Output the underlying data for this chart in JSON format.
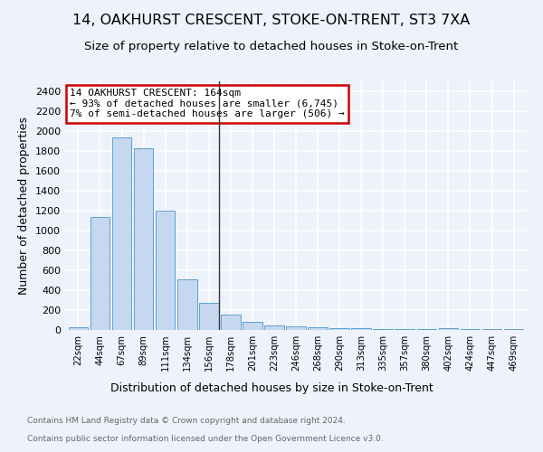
{
  "title": "14, OAKHURST CRESCENT, STOKE-ON-TRENT, ST3 7XA",
  "subtitle": "Size of property relative to detached houses in Stoke-on-Trent",
  "xlabel": "Distribution of detached houses by size in Stoke-on-Trent",
  "ylabel": "Number of detached properties",
  "bar_labels": [
    "22sqm",
    "44sqm",
    "67sqm",
    "89sqm",
    "111sqm",
    "134sqm",
    "156sqm",
    "178sqm",
    "201sqm",
    "223sqm",
    "246sqm",
    "268sqm",
    "290sqm",
    "313sqm",
    "335sqm",
    "357sqm",
    "380sqm",
    "402sqm",
    "424sqm",
    "447sqm",
    "469sqm"
  ],
  "bar_values": [
    30,
    1140,
    1940,
    1830,
    1200,
    505,
    270,
    155,
    85,
    45,
    40,
    30,
    18,
    20,
    5,
    5,
    5,
    20,
    5,
    5,
    5
  ],
  "bar_color": "#c5d8f0",
  "bar_edge_color": "#5a9fd4",
  "highlight_bar_index": 6,
  "annotation_title": "14 OAKHURST CRESCENT: 164sqm",
  "annotation_line1": "← 93% of detached houses are smaller (6,745)",
  "annotation_line2": "7% of semi-detached houses are larger (506) →",
  "annotation_box_color": "white",
  "annotation_box_edge_color": "#cc0000",
  "ylim": [
    0,
    2500
  ],
  "yticks": [
    0,
    200,
    400,
    600,
    800,
    1000,
    1200,
    1400,
    1600,
    1800,
    2000,
    2200,
    2400
  ],
  "footnote1": "Contains HM Land Registry data © Crown copyright and database right 2024.",
  "footnote2": "Contains public sector information licensed under the Open Government Licence v3.0.",
  "background_color": "#eef2fa",
  "grid_color": "#ffffff",
  "title_fontsize": 11.5,
  "subtitle_fontsize": 9.5,
  "xlabel_fontsize": 9,
  "ylabel_fontsize": 9
}
